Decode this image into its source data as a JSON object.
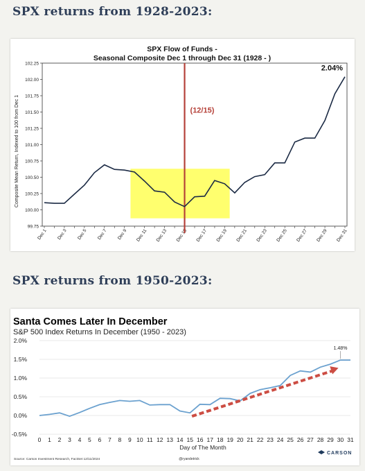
{
  "headings": {
    "first": "SPX returns from 1928-2023:",
    "second": "SPX returns from 1950-2023:"
  },
  "chart_data": [
    {
      "type": "line",
      "title": "SPX Flow of Funds -",
      "subtitle": "Seasonal Composite Dec 1 through Dec 31 (1928 - )",
      "ylabel": "Composite Mean Return, Indexed to 100 from Dec 1",
      "xlabel": "",
      "ylim": [
        99.75,
        102.25
      ],
      "yticks": [
        "99.75",
        "100.00",
        "100.25",
        "100.50",
        "100.75",
        "101.00",
        "101.25",
        "101.50",
        "101.75",
        "102.00",
        "102.25"
      ],
      "xtick_labels": [
        "Dec 1",
        "Dec 3",
        "Dec 5",
        "Dec 7",
        "Dec 9",
        "Dec 11",
        "Dec 13",
        "Dec 15",
        "Dec 17",
        "Dec 19",
        "Dec 21",
        "Dec 23",
        "Dec 25",
        "Dec 27",
        "Dec 29",
        "Dec 31"
      ],
      "x": [
        1,
        2,
        3,
        4,
        5,
        6,
        7,
        8,
        9,
        10,
        11,
        12,
        13,
        14,
        15,
        16,
        17,
        18,
        19,
        20,
        21,
        22,
        23,
        24,
        25,
        26,
        27,
        28,
        29,
        30,
        31
      ],
      "values": [
        100.11,
        100.1,
        100.1,
        100.24,
        100.38,
        100.57,
        100.69,
        100.62,
        100.61,
        100.58,
        100.44,
        100.29,
        100.27,
        100.12,
        100.05,
        100.2,
        100.21,
        100.45,
        100.4,
        100.26,
        100.42,
        100.51,
        100.54,
        100.72,
        100.72,
        101.04,
        101.1,
        101.1,
        101.37,
        101.78,
        102.04
      ],
      "vline": {
        "x": 15,
        "label": "(12/15)",
        "color": "#b54038"
      },
      "highlight": {
        "x_range": [
          9.6,
          19.5
        ],
        "y_range": [
          99.87,
          100.63
        ],
        "color": "#ffff55"
      },
      "end_label": "2.04%",
      "line_color": "#1b2a44",
      "grid": false
    },
    {
      "type": "line",
      "title": "Santa Comes Later In December",
      "subtitle": "S&P 500 Index Returns In December (1950 - 2023)",
      "xlabel": "Day of The Month",
      "ylabel": "",
      "ylim": [
        -0.5,
        2.0
      ],
      "yticks": [
        "-0.5%",
        "0.0%",
        "0.5%",
        "1.0%",
        "1.5%",
        "2.0%"
      ],
      "x": [
        0,
        1,
        2,
        3,
        4,
        5,
        6,
        7,
        8,
        9,
        10,
        11,
        12,
        13,
        14,
        15,
        16,
        17,
        18,
        19,
        20,
        21,
        22,
        23,
        24,
        25,
        26,
        27,
        28,
        29,
        30,
        31
      ],
      "values": [
        0.0,
        0.03,
        0.07,
        -0.02,
        0.08,
        0.19,
        0.29,
        0.35,
        0.4,
        0.38,
        0.4,
        0.28,
        0.29,
        0.29,
        0.12,
        0.07,
        0.3,
        0.29,
        0.46,
        0.45,
        0.39,
        0.59,
        0.69,
        0.74,
        0.8,
        1.07,
        1.19,
        1.16,
        1.29,
        1.37,
        1.48,
        1.48
      ],
      "end_label": "1.48%",
      "line_color": "#6ba1cf",
      "trend_arrow": {
        "from": [
          15.2,
          -0.02
        ],
        "to": [
          29.8,
          1.27
        ],
        "color": "#cc4d43"
      },
      "grid": true,
      "source": "Source: Carson Investment Research, FactSet 12/11/2024",
      "handle": "@ryandetrick",
      "brand": "CARSON"
    }
  ]
}
